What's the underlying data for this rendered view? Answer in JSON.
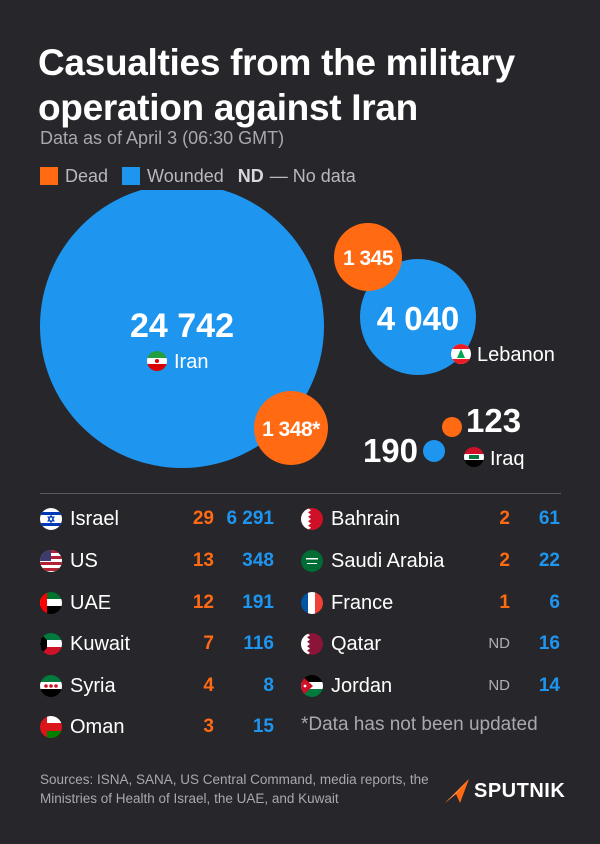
{
  "title": "Casualties from the military operation against Iran",
  "subtitle": "Data as of April 3 (06:30 GMT)",
  "legend": {
    "dead": "Dead",
    "wounded": "Wounded",
    "nd_abbr": "ND",
    "nd_desc": "— No data"
  },
  "colors": {
    "dead": "#ff6a13",
    "wounded": "#1e96f0",
    "background": "#27262b"
  },
  "chart_data": {
    "type": "bubble",
    "bubbles": [
      {
        "country": "Iran",
        "dead": "1 348*",
        "wounded": "24 742",
        "dead_value": 1348,
        "wounded_value": 24742
      },
      {
        "country": "Lebanon",
        "dead": "1 345",
        "wounded": "4 040",
        "dead_value": 1345,
        "wounded_value": 4040
      },
      {
        "country": "Iraq",
        "dead": "123",
        "wounded": "190",
        "dead_value": 123,
        "wounded_value": 190
      }
    ],
    "table_left": [
      {
        "country": "Israel",
        "dead": "29",
        "wounded": "6 291",
        "flag": "israel-flag-icon"
      },
      {
        "country": "US",
        "dead": "13",
        "wounded": "348",
        "flag": "us-flag-icon"
      },
      {
        "country": "UAE",
        "dead": "12",
        "wounded": "191",
        "flag": "uae-flag-icon"
      },
      {
        "country": "Kuwait",
        "dead": "7",
        "wounded": "116",
        "flag": "kuwait-flag-icon"
      },
      {
        "country": "Syria",
        "dead": "4",
        "wounded": "8",
        "flag": "syria-flag-icon"
      },
      {
        "country": "Oman",
        "dead": "3",
        "wounded": "15",
        "flag": "oman-flag-icon"
      }
    ],
    "table_right": [
      {
        "country": "Bahrain",
        "dead": "2",
        "wounded": "61",
        "flag": "bahrain-flag-icon"
      },
      {
        "country": "Saudi Arabia",
        "dead": "2",
        "wounded": "22",
        "flag": "saudi-arabia-flag-icon"
      },
      {
        "country": "France",
        "dead": "1",
        "wounded": "6",
        "flag": "france-flag-icon"
      },
      {
        "country": "Qatar",
        "dead": "ND",
        "wounded": "16",
        "flag": "qatar-flag-icon"
      },
      {
        "country": "Jordan",
        "dead": "ND",
        "wounded": "14",
        "flag": "jordan-flag-icon"
      }
    ]
  },
  "footnote": "*Data has not been updated",
  "sources": "Sources: ISNA, SANA, US Central Command, media reports, the Ministries of Health of Israel, the UAE, and Kuwait",
  "brand": {
    "name": "SPUTNIK",
    "icon": "sputnik-logo-icon"
  }
}
